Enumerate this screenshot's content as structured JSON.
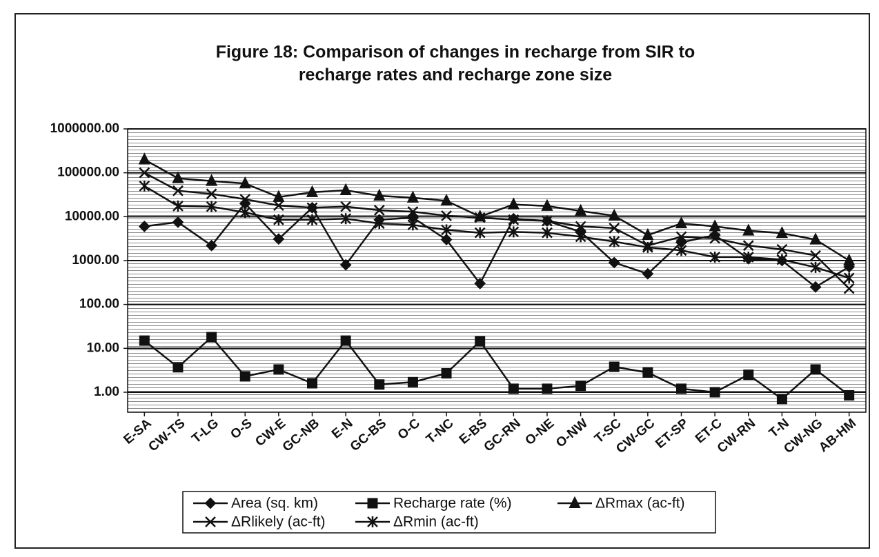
{
  "chart_data": {
    "type": "line",
    "title": [
      "Figure 18: Comparison of changes in recharge from SIR to",
      "recharge rates and recharge zone size"
    ],
    "categories": [
      "E-SA",
      "CW-TS",
      "T-LG",
      "O-S",
      "CW-E",
      "GC-NB",
      "E-N",
      "GC-BS",
      "O-C",
      "T-NC",
      "E-BS",
      "GC-RN",
      "O-NE",
      "O-NW",
      "T-SC",
      "CW-GC",
      "ET-SP",
      "ET-C",
      "CW-RN",
      "T-N",
      "CW-NG",
      "AB-HM"
    ],
    "log_y": true,
    "ylim": [
      0.35,
      1000000
    ],
    "yticks": [
      {
        "value": 1,
        "label": "1.00"
      },
      {
        "value": 10,
        "label": "10.00"
      },
      {
        "value": 100,
        "label": "100.00"
      },
      {
        "value": 1000,
        "label": "1000.00"
      },
      {
        "value": 10000,
        "label": "10000.00"
      },
      {
        "value": 100000,
        "label": "100000.00"
      },
      {
        "value": 1000000,
        "label": "1000000.00"
      }
    ],
    "grid": true,
    "legend": "bottom",
    "series": [
      {
        "name": "Area (sq. km)",
        "color": "#111111",
        "marker": "diamond",
        "values": [
          6000,
          7500,
          2200,
          20000,
          3100,
          16000,
          800,
          8500,
          9500,
          3000,
          300,
          9000,
          8000,
          4500,
          900,
          500,
          2600,
          3800,
          1100,
          1000,
          250,
          720
        ]
      },
      {
        "name": "Recharge rate (%)",
        "color": "#111111",
        "marker": "square",
        "values": [
          15,
          3.7,
          18,
          2.3,
          3.3,
          1.6,
          15,
          1.5,
          1.7,
          2.7,
          14.5,
          1.2,
          1.2,
          1.4,
          3.8,
          2.8,
          1.2,
          1.0,
          2.5,
          0.7,
          3.3,
          0.85
        ]
      },
      {
        "name": "ΔRmax (ac-ft)",
        "color": "#111111",
        "marker": "triangle",
        "values": [
          200000,
          75000,
          65000,
          57000,
          28000,
          36000,
          40000,
          30000,
          27000,
          23000,
          10000,
          19000,
          17500,
          13500,
          10500,
          3800,
          7000,
          6000,
          4800,
          4200,
          3000,
          1000
        ]
      },
      {
        "name": "ΔRlikely (ac-ft)",
        "color": "#111111",
        "marker": "x",
        "values": [
          100000,
          39000,
          33000,
          25000,
          18000,
          16000,
          17000,
          14000,
          13000,
          10500,
          9500,
          8500,
          8000,
          6000,
          5500,
          2200,
          3500,
          3200,
          2200,
          1800,
          1300,
          230
        ]
      },
      {
        "name": "ΔRmin (ac-ft)",
        "color": "#111111",
        "marker": "star",
        "values": [
          50000,
          17500,
          17000,
          12500,
          8500,
          8500,
          9000,
          7000,
          6500,
          5000,
          4300,
          4500,
          4300,
          3500,
          2700,
          2000,
          1700,
          1200,
          1200,
          1050,
          700,
          400
        ]
      }
    ]
  }
}
